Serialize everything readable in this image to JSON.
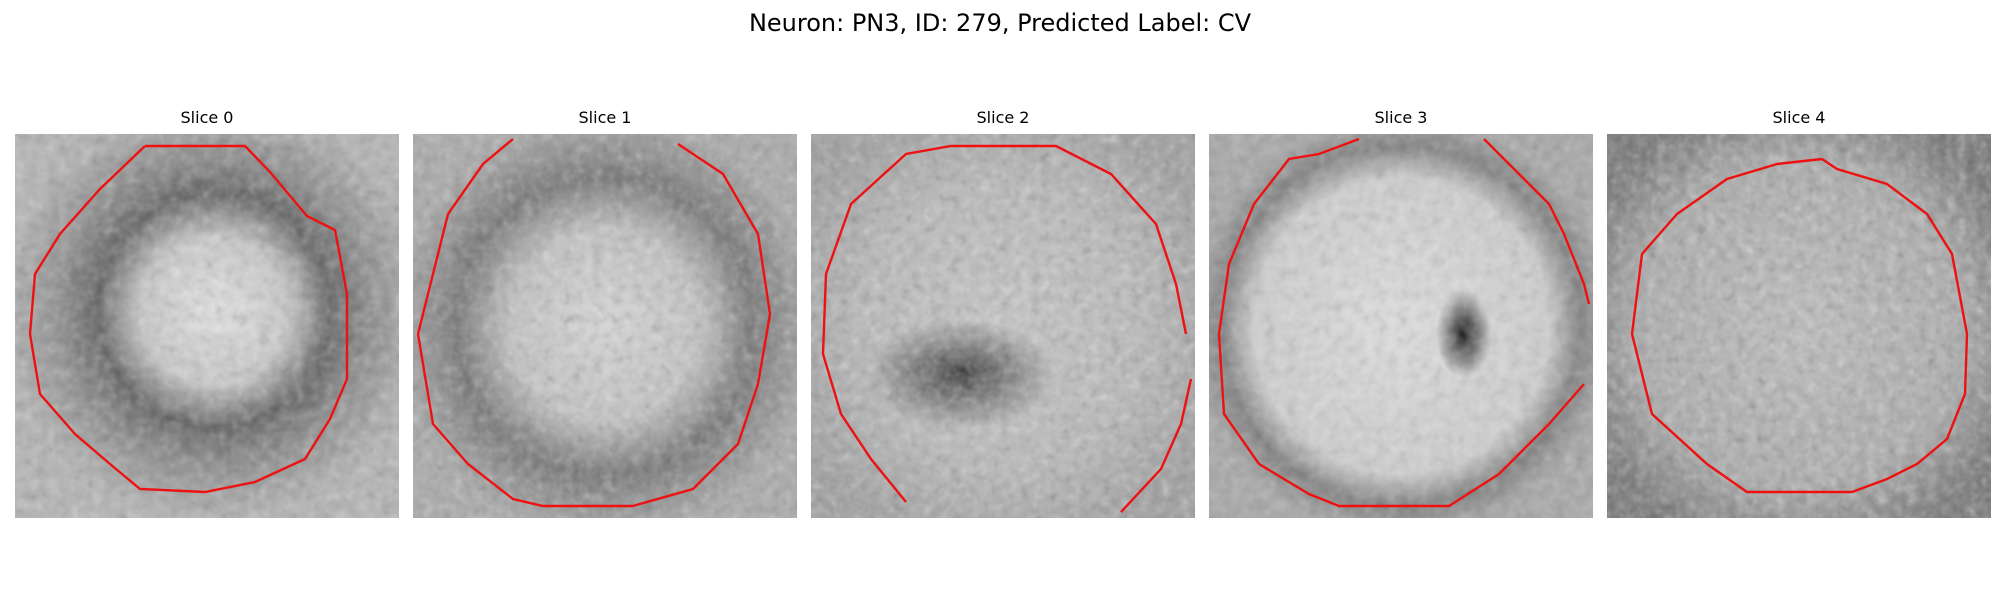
{
  "figure": {
    "title": "Neuron: PN3, ID: 279, Predicted Label: CV"
  },
  "panels": [
    {
      "label": "Slice 0"
    },
    {
      "label": "Slice 1"
    },
    {
      "label": "Slice 2"
    },
    {
      "label": "Slice 3"
    },
    {
      "label": "Slice 4"
    }
  ],
  "colors": {
    "contour": "#ee1111",
    "background": "#ffffff"
  }
}
